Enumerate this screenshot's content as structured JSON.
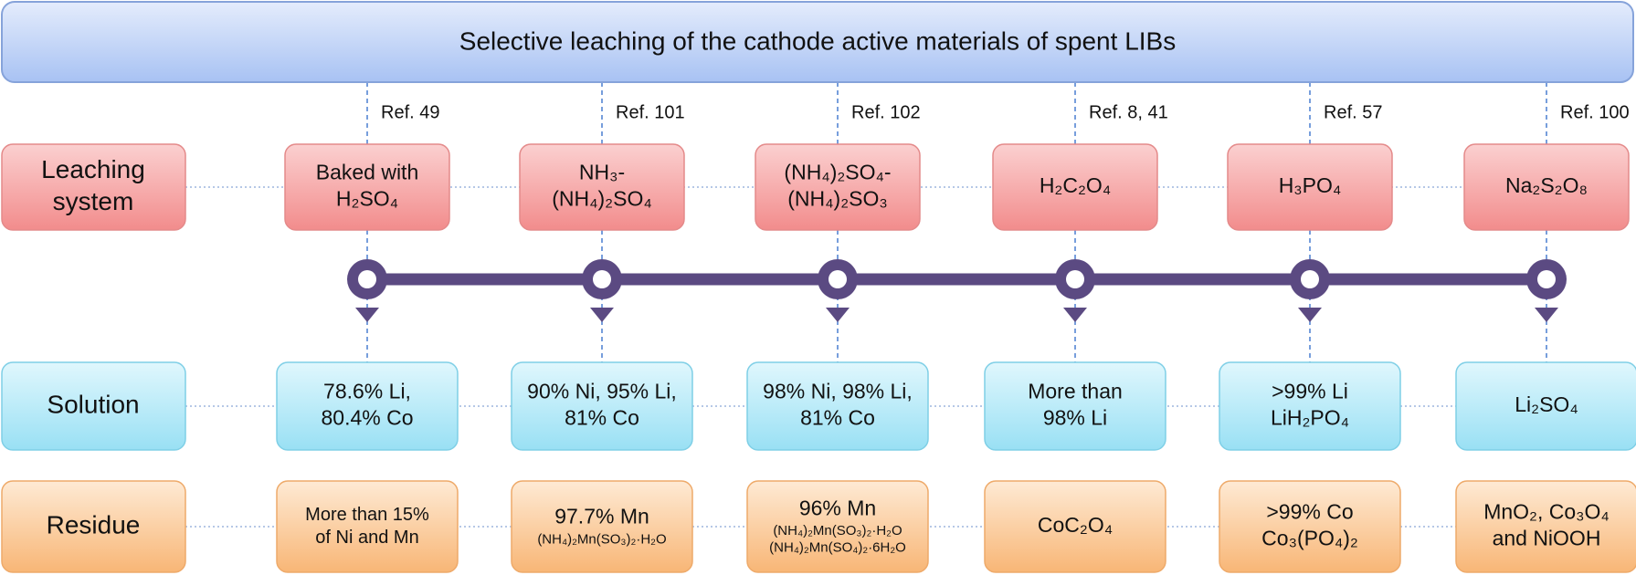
{
  "title": "Selective leaching of the cathode active materials of spent LIBs",
  "row_labels": {
    "leaching": [
      "Leaching",
      "system"
    ],
    "solution": [
      "Solution"
    ],
    "residue": [
      "Residue"
    ]
  },
  "columns": [
    {
      "ref": "Ref. 49",
      "leaching": [
        "Baked with",
        "H₂SO₄"
      ],
      "solution": [
        "78.6% Li,",
        "80.4% Co"
      ],
      "residue": [
        "More than 15%",
        "of Ni and Mn"
      ]
    },
    {
      "ref": "Ref. 101",
      "leaching": [
        "NH₃-",
        "(NH₄)₂SO₄"
      ],
      "solution": [
        "90% Ni, 95% Li,",
        "81% Co"
      ],
      "residue": [
        "97.7% Mn",
        "(NH₄)₂Mn(SO₃)₂·H₂O"
      ]
    },
    {
      "ref": "Ref. 102",
      "leaching": [
        "(NH₄)₂SO₄-",
        "(NH₄)₂SO₃"
      ],
      "solution": [
        "98% Ni, 98% Li,",
        "81% Co"
      ],
      "residue": [
        "96% Mn",
        "(NH₄)₂Mn(SO₃)₂·H₂O",
        "(NH₄)₂Mn(SO₄)₂·6H₂O"
      ]
    },
    {
      "ref": "Ref. 8, 41",
      "leaching": [
        "H₂C₂O₄"
      ],
      "solution": [
        "More than",
        "98% Li"
      ],
      "residue": [
        "CoC₂O₄"
      ]
    },
    {
      "ref": "Ref. 57",
      "leaching": [
        "H₃PO₄"
      ],
      "solution": [
        ">99% Li",
        "LiH₂PO₄"
      ],
      "residue": [
        ">99%  Co",
        "Co₃(PO₄)₂"
      ]
    },
    {
      "ref": "Ref. 100",
      "leaching": [
        "Na₂S₂O₈"
      ],
      "solution": [
        "Li₂SO₄"
      ],
      "residue": [
        "MnO₂, Co₃O₄",
        "and NiOOH"
      ]
    }
  ]
}
